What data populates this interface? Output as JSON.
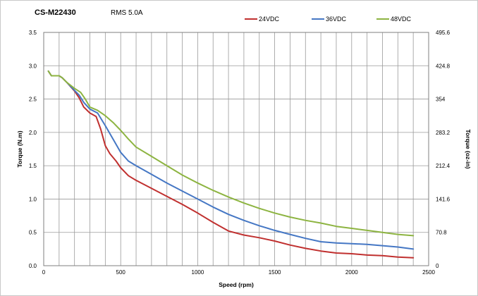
{
  "chart_data": {
    "type": "line",
    "title": "CS-M22430",
    "subtitle": "RMS 5.0A",
    "xlabel": "Speed (rpm)",
    "ylabel": "Torque (N.m)",
    "y2label": "Torque (oz-in)",
    "xlim": [
      0,
      2500
    ],
    "ylim": [
      0,
      3.5
    ],
    "y2lim": [
      0,
      495.6
    ],
    "x_ticks": [
      "0",
      "500",
      "1000",
      "1500",
      "2000",
      "2500"
    ],
    "y_ticks": [
      "0.0",
      "0.5",
      "1.0",
      "1.5",
      "2.0",
      "2.5",
      "3.0",
      "3.5"
    ],
    "y2_ticks": [
      "0",
      "70.8",
      "141.6",
      "212.4",
      "283.2",
      "354",
      "424.8",
      "495.6"
    ],
    "grid": true,
    "legend_position": "top-right",
    "series": [
      {
        "name": "24VDC",
        "color": "#c0302f",
        "points": [
          [
            30,
            2.92
          ],
          [
            50,
            2.85
          ],
          [
            70,
            2.85
          ],
          [
            100,
            2.85
          ],
          [
            120,
            2.82
          ],
          [
            150,
            2.75
          ],
          [
            200,
            2.62
          ],
          [
            230,
            2.52
          ],
          [
            260,
            2.38
          ],
          [
            300,
            2.29
          ],
          [
            340,
            2.24
          ],
          [
            370,
            2.05
          ],
          [
            400,
            1.8
          ],
          [
            430,
            1.68
          ],
          [
            470,
            1.57
          ],
          [
            500,
            1.47
          ],
          [
            550,
            1.35
          ],
          [
            600,
            1.28
          ],
          [
            700,
            1.16
          ],
          [
            800,
            1.04
          ],
          [
            900,
            0.92
          ],
          [
            1000,
            0.79
          ],
          [
            1100,
            0.65
          ],
          [
            1200,
            0.52
          ],
          [
            1300,
            0.46
          ],
          [
            1400,
            0.42
          ],
          [
            1500,
            0.37
          ],
          [
            1600,
            0.31
          ],
          [
            1700,
            0.26
          ],
          [
            1800,
            0.22
          ],
          [
            1900,
            0.19
          ],
          [
            2000,
            0.18
          ],
          [
            2100,
            0.16
          ],
          [
            2200,
            0.15
          ],
          [
            2300,
            0.13
          ],
          [
            2400,
            0.12
          ]
        ]
      },
      {
        "name": "36VDC",
        "color": "#4577c4",
        "points": [
          [
            30,
            2.92
          ],
          [
            50,
            2.85
          ],
          [
            70,
            2.85
          ],
          [
            100,
            2.85
          ],
          [
            120,
            2.82
          ],
          [
            150,
            2.75
          ],
          [
            200,
            2.63
          ],
          [
            230,
            2.56
          ],
          [
            260,
            2.45
          ],
          [
            300,
            2.35
          ],
          [
            350,
            2.29
          ],
          [
            400,
            2.1
          ],
          [
            450,
            1.9
          ],
          [
            500,
            1.7
          ],
          [
            550,
            1.57
          ],
          [
            600,
            1.5
          ],
          [
            700,
            1.37
          ],
          [
            800,
            1.24
          ],
          [
            900,
            1.12
          ],
          [
            1000,
            1.0
          ],
          [
            1100,
            0.88
          ],
          [
            1200,
            0.77
          ],
          [
            1300,
            0.68
          ],
          [
            1400,
            0.6
          ],
          [
            1500,
            0.53
          ],
          [
            1600,
            0.47
          ],
          [
            1700,
            0.41
          ],
          [
            1800,
            0.36
          ],
          [
            1900,
            0.34
          ],
          [
            2000,
            0.33
          ],
          [
            2100,
            0.32
          ],
          [
            2200,
            0.3
          ],
          [
            2300,
            0.28
          ],
          [
            2400,
            0.25
          ]
        ]
      },
      {
        "name": "48VDC",
        "color": "#8db441",
        "points": [
          [
            30,
            2.92
          ],
          [
            50,
            2.85
          ],
          [
            70,
            2.85
          ],
          [
            100,
            2.85
          ],
          [
            120,
            2.82
          ],
          [
            150,
            2.75
          ],
          [
            200,
            2.66
          ],
          [
            240,
            2.6
          ],
          [
            270,
            2.5
          ],
          [
            300,
            2.38
          ],
          [
            350,
            2.33
          ],
          [
            400,
            2.25
          ],
          [
            450,
            2.15
          ],
          [
            500,
            2.03
          ],
          [
            550,
            1.9
          ],
          [
            600,
            1.78
          ],
          [
            700,
            1.64
          ],
          [
            800,
            1.5
          ],
          [
            900,
            1.36
          ],
          [
            1000,
            1.24
          ],
          [
            1100,
            1.13
          ],
          [
            1200,
            1.03
          ],
          [
            1300,
            0.94
          ],
          [
            1400,
            0.86
          ],
          [
            1500,
            0.79
          ],
          [
            1600,
            0.73
          ],
          [
            1700,
            0.68
          ],
          [
            1800,
            0.64
          ],
          [
            1900,
            0.59
          ],
          [
            2000,
            0.56
          ],
          [
            2100,
            0.53
          ],
          [
            2200,
            0.5
          ],
          [
            2300,
            0.47
          ],
          [
            2400,
            0.45
          ]
        ]
      }
    ]
  }
}
